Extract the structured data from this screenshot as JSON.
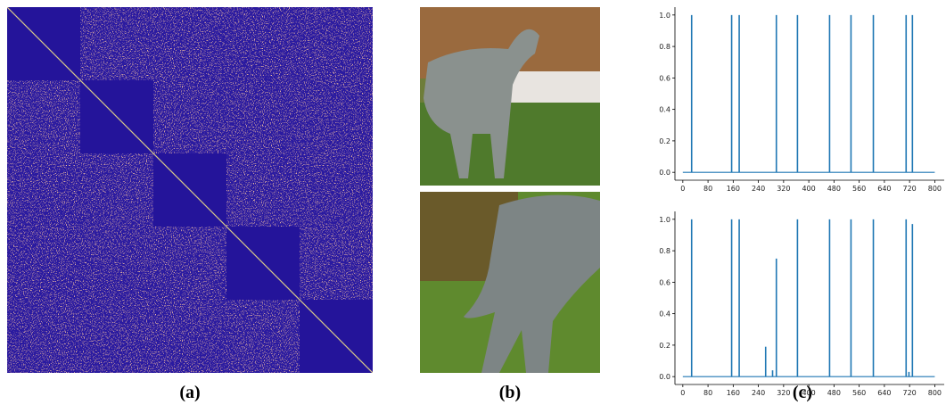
{
  "panels": {
    "a": "(a)",
    "b": "(b)",
    "c": "(c)"
  },
  "chart_data": [
    {
      "type": "spike",
      "color": "#1f77b4",
      "x": [
        28,
        155,
        179,
        297,
        364,
        466,
        534,
        605,
        709,
        729
      ],
      "values": [
        1,
        1,
        1,
        1,
        1,
        1,
        1,
        1,
        1,
        1
      ],
      "xlim": [
        -25,
        830
      ],
      "ylim": [
        -0.05,
        1.05
      ],
      "xticks": [
        0,
        80,
        160,
        240,
        320,
        400,
        480,
        560,
        640,
        720,
        800
      ],
      "yticks": [
        {
          "value": 0,
          "label": "0.0"
        },
        0.2,
        0.4,
        0.6,
        0.8,
        {
          "value": 1,
          "label": "1.0"
        }
      ]
    },
    {
      "type": "spike",
      "color": "#1f77b4",
      "x": [
        28,
        155,
        179,
        263,
        285,
        297,
        364,
        466,
        534,
        605,
        709,
        718,
        729
      ],
      "values": [
        1,
        1,
        1,
        0.19,
        0.04,
        0.75,
        1,
        1,
        1,
        1,
        1,
        0.03,
        0.97
      ],
      "xlim": [
        -25,
        830
      ],
      "ylim": [
        -0.05,
        1.05
      ],
      "xticks": [
        0,
        80,
        160,
        240,
        320,
        400,
        480,
        560,
        640,
        720,
        800
      ],
      "yticks": [
        {
          "value": 0,
          "label": "0.0"
        },
        0.2,
        0.4,
        0.6,
        0.8,
        {
          "value": 1,
          "label": "1.0"
        }
      ]
    }
  ]
}
